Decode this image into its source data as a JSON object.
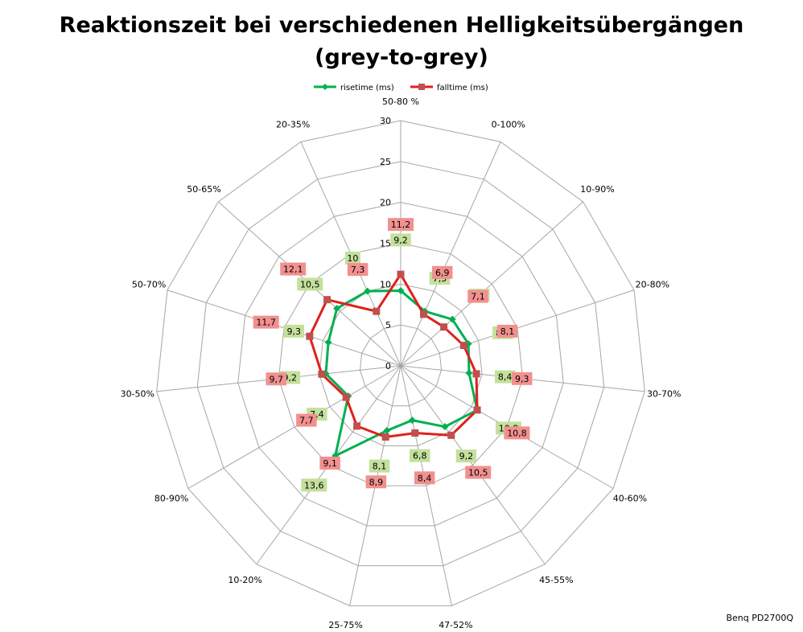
{
  "chart_data": {
    "type": "radar",
    "title_line1": "Reaktionszeit bei verschiedenen Helligkeitsübergängen",
    "title_line2": "(grey-to-grey)",
    "categories": [
      "50-80 %",
      "0-100%",
      "10-90%",
      "20-80%",
      "30-70%",
      "40-60%",
      "45-55%",
      "47-52%",
      "25-75%",
      "10-20%",
      "80-90%",
      "30-50%",
      "50-70%",
      "50-65%",
      "20-35%"
    ],
    "radial_ticks": [
      0,
      5,
      10,
      15,
      20,
      25,
      30
    ],
    "rlim": [
      0,
      30
    ],
    "legend_position": "top",
    "series": [
      {
        "name": "risetime (ms)",
        "color": "#00b050",
        "label_bg": "#c4e09c",
        "marker": "diamond",
        "values": [
          9.2,
          7.3,
          8.5,
          8.7,
          8.4,
          10.8,
          9.2,
          6.8,
          8.1,
          13.6,
          7.4,
          9.2,
          9.3,
          10.5,
          10
        ]
      },
      {
        "name": "falltime (ms)",
        "color": "#e0201c",
        "label_bg": "#f29090",
        "marker": "square",
        "values": [
          11.2,
          6.9,
          7.1,
          8.1,
          9.3,
          10.8,
          10.5,
          8.4,
          8.9,
          9.1,
          7.7,
          9.7,
          11.7,
          12.1,
          7.3
        ]
      }
    ],
    "value_labels": {
      "risetime (ms)": [
        "9,2",
        "7,3",
        "8,5",
        "8,7",
        "8,4",
        "10,8",
        "9,2",
        "6,8",
        "8,1",
        "13,6",
        "7,4",
        "9,2",
        "9,3",
        "10,5",
        "10"
      ],
      "falltime (ms)": [
        "11,2",
        "6,9",
        "7,1",
        "8,1",
        "9,3",
        "10,8",
        "10,5",
        "8,4",
        "8,9",
        "9,1",
        "7,7",
        "9,7",
        "11,7",
        "12,1",
        "7,3"
      ]
    },
    "source_note": "Benq PD2700Q"
  }
}
